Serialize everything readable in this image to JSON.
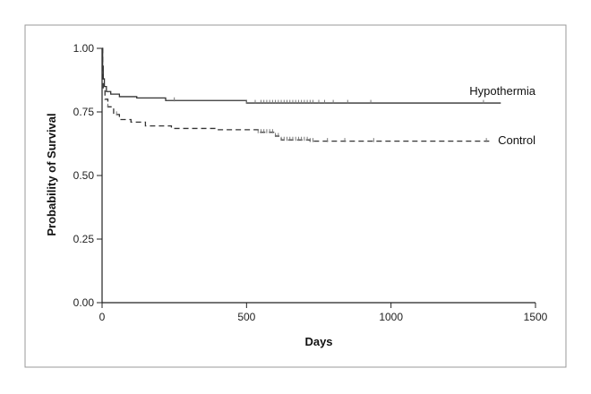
{
  "chart_data": {
    "type": "line",
    "title": "",
    "xlabel": "Days",
    "ylabel": "Probability of Survival",
    "xlim": [
      0,
      1500
    ],
    "ylim": [
      0,
      1.0
    ],
    "x_ticks": [
      0,
      500,
      1000,
      1500
    ],
    "x_tick_labels": [
      "0",
      "500",
      "1000",
      "1500"
    ],
    "y_ticks": [
      0,
      0.25,
      0.5,
      0.75,
      1.0
    ],
    "y_tick_labels": [
      "0.00",
      "0.25",
      "0.50",
      "0.75",
      "1.00"
    ],
    "grid": false,
    "legend": "none",
    "series": [
      {
        "name": "Hypothermia",
        "line_style": "solid",
        "color": "#333333",
        "steps": [
          [
            0,
            1.0
          ],
          [
            2,
            0.93
          ],
          [
            4,
            0.88
          ],
          [
            8,
            0.85
          ],
          [
            15,
            0.83
          ],
          [
            30,
            0.82
          ],
          [
            60,
            0.81
          ],
          [
            120,
            0.805
          ],
          [
            220,
            0.795
          ],
          [
            500,
            0.785
          ],
          [
            1380,
            0.785
          ]
        ],
        "censored": [
          250,
          500,
          530,
          550,
          560,
          570,
          580,
          590,
          600,
          610,
          620,
          630,
          640,
          650,
          660,
          670,
          680,
          690,
          700,
          710,
          720,
          730,
          750,
          770,
          800,
          850,
          930,
          1320
        ]
      },
      {
        "name": "Control",
        "line_style": "dashed",
        "color": "#333333",
        "steps": [
          [
            0,
            1.0
          ],
          [
            2,
            0.9
          ],
          [
            4,
            0.84
          ],
          [
            10,
            0.8
          ],
          [
            20,
            0.77
          ],
          [
            40,
            0.74
          ],
          [
            60,
            0.72
          ],
          [
            100,
            0.71
          ],
          [
            150,
            0.695
          ],
          [
            240,
            0.685
          ],
          [
            400,
            0.68
          ],
          [
            540,
            0.67
          ],
          [
            600,
            0.655
          ],
          [
            620,
            0.64
          ],
          [
            720,
            0.635
          ],
          [
            1340,
            0.635
          ]
        ],
        "censored": [
          20,
          50,
          540,
          550,
          560,
          570,
          580,
          590,
          600,
          610,
          620,
          630,
          640,
          650,
          660,
          670,
          680,
          690,
          700,
          710,
          720,
          730,
          780,
          840,
          940,
          1330
        ]
      }
    ],
    "annotations": [
      {
        "text": "Hypothermia",
        "series": "Hypothermia"
      },
      {
        "text": "Control",
        "series": "Control"
      }
    ]
  }
}
